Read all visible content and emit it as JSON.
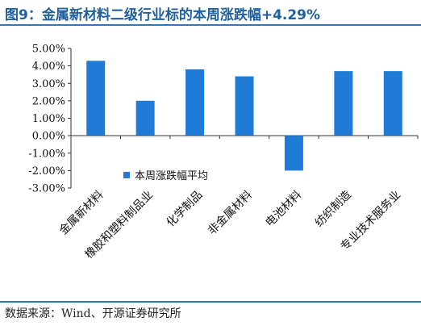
{
  "title": "图9：金属新材料二级行业标的本周涨跌幅+4.29%",
  "source": "数据来源：Wind、开源证券研究所",
  "chart_data": {
    "type": "bar",
    "categories": [
      "金属新材料",
      "橡胶和塑料制品业",
      "化学制品",
      "非金属材料",
      "电池材料",
      "纺织制造",
      "专业技术服务业"
    ],
    "series": [
      {
        "name": "本周涨跌幅平均",
        "values": [
          4.29,
          2.0,
          3.8,
          3.4,
          -2.0,
          3.7,
          3.7
        ],
        "color": "#1f7bd6"
      }
    ],
    "ylim": [
      -3,
      5
    ],
    "yticks": [
      5,
      4,
      3,
      2,
      1,
      0,
      -1,
      -2,
      -3
    ],
    "ytick_labels": [
      "5.00%",
      "4.00%",
      "3.00%",
      "2.00%",
      "1.00%",
      "0.00%",
      "-1.00%",
      "-2.00%",
      "-3.00%"
    ],
    "legend_position": "left-center",
    "grid": false
  }
}
